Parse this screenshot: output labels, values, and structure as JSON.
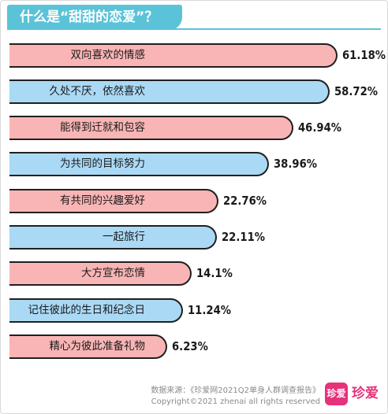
{
  "title": "什么是“甜甜的恋爱”？",
  "chart_data": {
    "type": "bar",
    "orientation": "horizontal",
    "title": "什么是“甜甜的恋爱”？",
    "xlim": [
      0,
      100
    ],
    "grid": false,
    "legend": "none",
    "categories": [
      "双向喜欢的情感",
      "久处不厌，依然喜欢",
      "能得到迁就和包容",
      "为共同的目标努力",
      "有共同的兴趣爱好",
      "一起旅行",
      "大方宣布恋情",
      "记住彼此的生日和纪念日",
      "精心为彼此准备礼物"
    ],
    "values": [
      61.18,
      58.72,
      46.94,
      38.96,
      22.76,
      22.11,
      14.1,
      11.24,
      6.23
    ],
    "value_labels": [
      "61.18%",
      "58.72%",
      "46.94%",
      "38.96%",
      "22.76%",
      "22.11%",
      "14.1%",
      "11.24%",
      "6.23%"
    ],
    "bar_colors": [
      "#f9b5b5",
      "#aad9f5",
      "#f9b5b5",
      "#aad9f5",
      "#f9b5b5",
      "#aad9f5",
      "#f9b5b5",
      "#aad9f5",
      "#f9b5b5"
    ]
  },
  "colors": {
    "accent": "#5bc3d8",
    "pink_bar": "#f9b5b5",
    "blue_bar": "#aad9f5",
    "brand": "#e6327a"
  },
  "footer": {
    "source": "数据来源：《珍爱网2021Q2单身人群调查报告》",
    "copyright": "Copyright©2021  zhenai  all rights reserved",
    "logo_badge": "珍爱",
    "logo_text": "珍爱"
  }
}
